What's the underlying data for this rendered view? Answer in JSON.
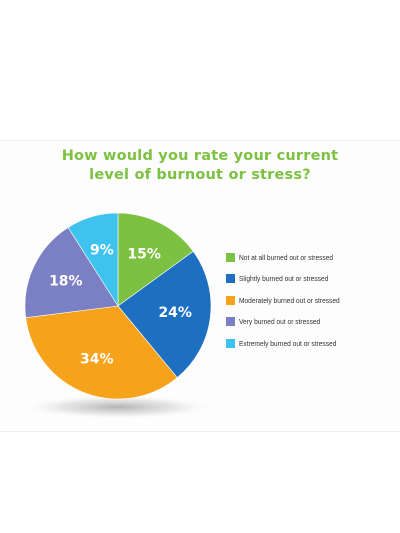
{
  "chart_data": {
    "type": "pie",
    "title": "How would you rate your current level of burnout or stress?",
    "title_lines": [
      "How would you rate your current",
      "level of burnout or stress?"
    ],
    "slices": [
      {
        "label": "Not at all burned out or stressed",
        "value": 15,
        "display": "15%",
        "color": "#7dc142"
      },
      {
        "label": "Slightly burned out or stressed",
        "value": 24,
        "display": "24%",
        "color": "#1c6fc1"
      },
      {
        "label": "Moderately burned out or stressed",
        "value": 34,
        "display": "34%",
        "color": "#f7a21b"
      },
      {
        "label": "Very burned out or stressed",
        "value": 18,
        "display": "18%",
        "color": "#7a80c3"
      },
      {
        "label": "Extremely burned out or stressed",
        "value": 9,
        "display": "9%",
        "color": "#3ec3ef"
      }
    ],
    "legend_position": "right"
  }
}
